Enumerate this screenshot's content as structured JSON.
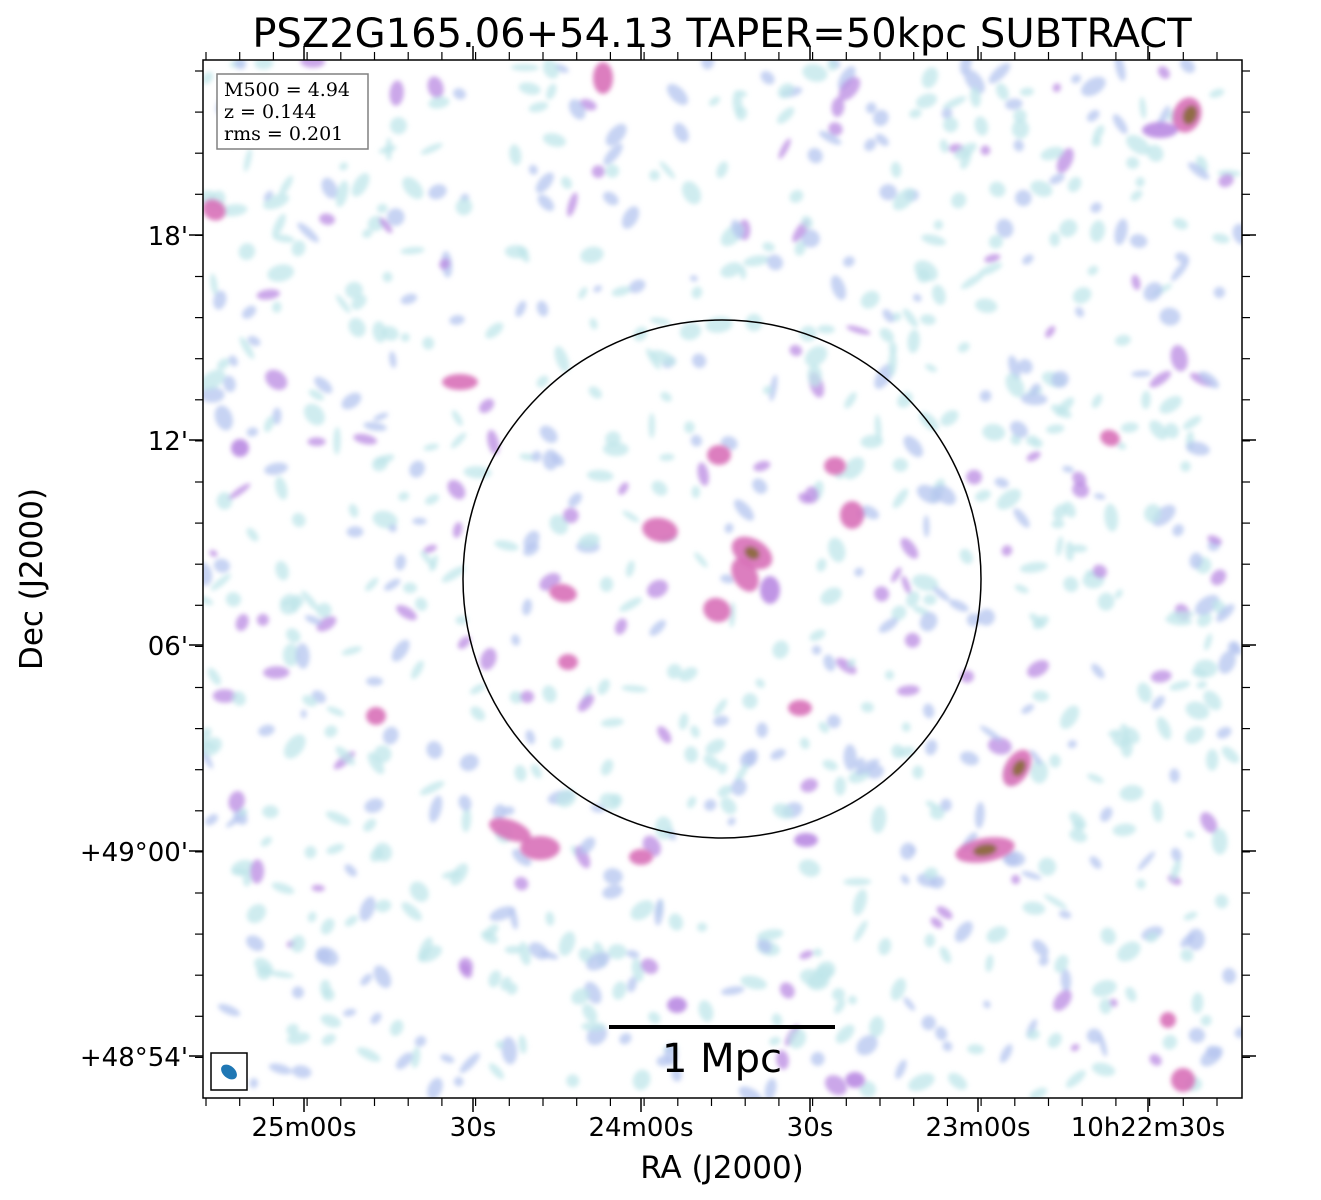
{
  "title": "PSZ2G165.06+54.13 TAPER=50kpc SUBTRACT",
  "info_box": {
    "line1": "M500 = 4.94",
    "line2": "z = 0.144",
    "line3": "rms = 0.201"
  },
  "axes": {
    "xlabel": "RA (J2000)",
    "ylabel": "Dec (J2000)",
    "x_ticks": [
      "25m00s",
      "30s",
      "24m00s",
      "30s",
      "23m00s",
      "10h22m30s"
    ],
    "y_ticks": [
      "18'",
      "12'",
      "06'",
      "+49°00'",
      "+48°54'"
    ]
  },
  "scale_bar": {
    "label": "1 Mpc"
  },
  "colors": {
    "faint": "#bfe6ea",
    "low": "#b4c4ef",
    "mid": "#b98ae2",
    "high": "#d870b8",
    "peak": "#8a6a3a",
    "beam": "#1f77b4"
  }
}
